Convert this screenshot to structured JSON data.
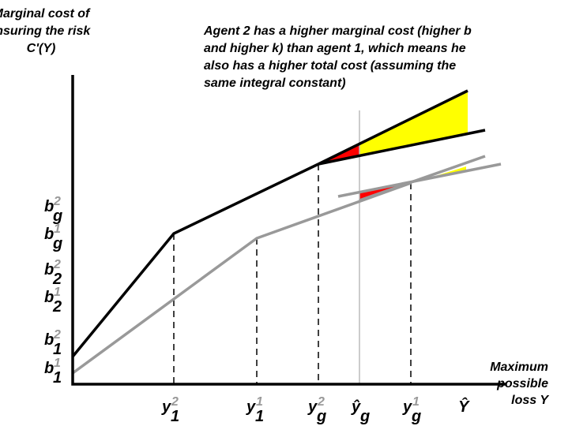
{
  "y_axis_label": [
    "Marginal cost of",
    "insuring the risk",
    "C'(Y)"
  ],
  "annotation": [
    "Agent 2 has a higher marginal cost (higher b",
    "and higher k) than agent 1, which means he",
    "also has a higher total cost (assuming the",
    "same integral constant)"
  ],
  "x_axis_label": [
    "Maximum",
    "possible",
    "loss Y"
  ],
  "y_ticks": [
    {
      "base": "b",
      "sub": "g",
      "sup": "2"
    },
    {
      "base": "b",
      "sub": "g",
      "sup": "1"
    },
    {
      "base": "b",
      "sub": "2",
      "sup": "2"
    },
    {
      "base": "b",
      "sub": "2",
      "sup": "1"
    },
    {
      "base": "b",
      "sub": "1",
      "sup": "2"
    },
    {
      "base": "b",
      "sub": "1",
      "sup": "1"
    }
  ],
  "x_ticks": [
    {
      "base": "y",
      "sub": "1",
      "sup": "2"
    },
    {
      "base": "y",
      "sub": "1",
      "sup": "1"
    },
    {
      "base": "y",
      "sub": "g",
      "sup": "2"
    },
    {
      "base": "ŷ",
      "sub": "g"
    },
    {
      "base": "y",
      "sub": "g",
      "sup": "1"
    },
    {
      "base": "Ŷ"
    }
  ]
}
